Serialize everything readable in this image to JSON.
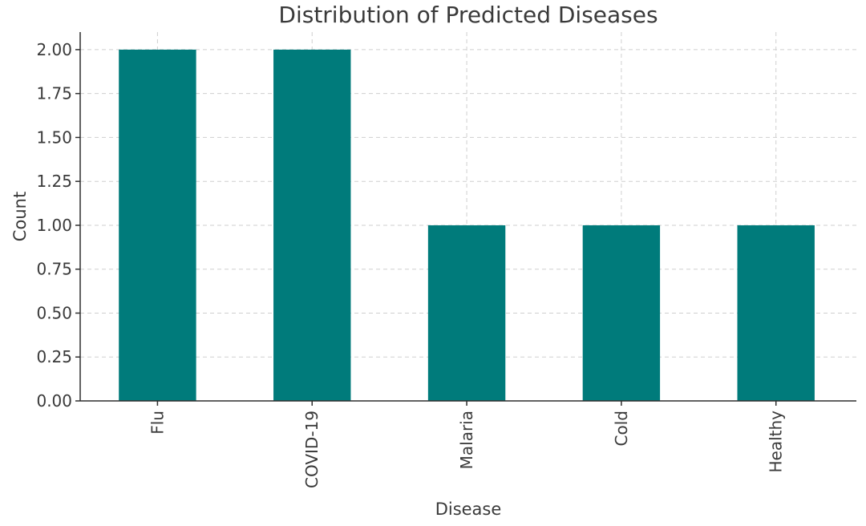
{
  "colors": {
    "bar": "#007b7b",
    "grid": "#cfcfcf",
    "axis": "#2f2f2f",
    "text": "#3a3a3a",
    "background": "#ffffff"
  },
  "chart_data": {
    "type": "bar",
    "title": "Distribution of Predicted Diseases",
    "xlabel": "Disease",
    "ylabel": "Count",
    "categories": [
      "Flu",
      "COVID-19",
      "Malaria",
      "Cold",
      "Healthy"
    ],
    "values": [
      2,
      2,
      1,
      1,
      1
    ],
    "ylim": [
      0,
      2.1
    ],
    "yticks": [
      "0.00",
      "0.25",
      "0.50",
      "0.75",
      "1.00",
      "1.25",
      "1.50",
      "1.75",
      "2.00"
    ],
    "grid": true,
    "x_tick_rotation": "vertical"
  }
}
